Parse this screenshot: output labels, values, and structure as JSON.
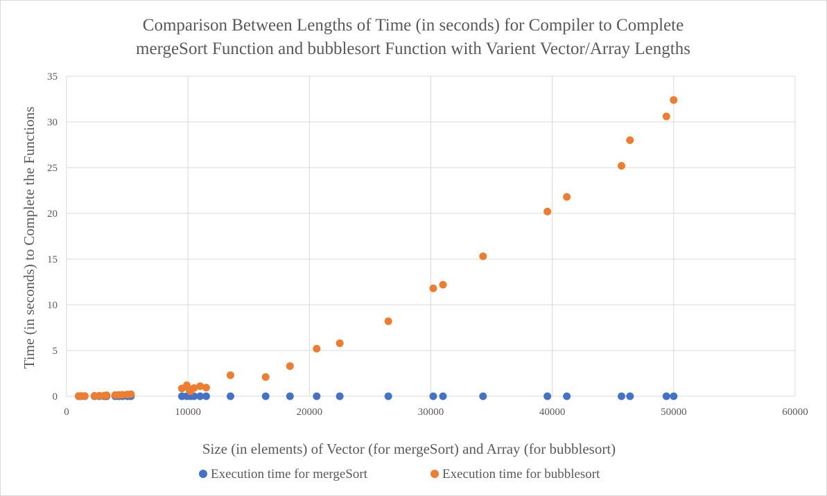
{
  "chart_data": {
    "type": "scatter",
    "title_lines": [
      "Comparison Between Lengths of Time (in seconds) for Compiler to Complete",
      "mergeSort Function and bubblesort Function with Varient Vector/Array Lengths"
    ],
    "xlabel": "Size (in elements) of Vector (for mergeSort) and Array (for bubblesort)",
    "ylabel": "Time (in seconds) to Complete  the Functions",
    "xlim": [
      0,
      60000
    ],
    "ylim": [
      0,
      35
    ],
    "x_ticks": [
      "0",
      "10000",
      "20000",
      "30000",
      "40000",
      "50000",
      "60000"
    ],
    "y_ticks": [
      "0",
      "5",
      "10",
      "15",
      "20",
      "25",
      "30",
      "35"
    ],
    "grid": true,
    "legend_position": "bottom",
    "series": [
      {
        "name": "Execution time for mergeSort",
        "color": "#4472c4",
        "points": [
          [
            1000,
            0
          ],
          [
            1200,
            0
          ],
          [
            1500,
            0
          ],
          [
            2300,
            0
          ],
          [
            2700,
            0
          ],
          [
            3100,
            0
          ],
          [
            3300,
            0
          ],
          [
            4000,
            0
          ],
          [
            4300,
            0
          ],
          [
            4600,
            0
          ],
          [
            5000,
            0
          ],
          [
            5300,
            0
          ],
          [
            9500,
            0
          ],
          [
            9900,
            0
          ],
          [
            10200,
            0
          ],
          [
            10500,
            0
          ],
          [
            11000,
            0
          ],
          [
            11500,
            0
          ],
          [
            13500,
            0
          ],
          [
            16400,
            0
          ],
          [
            18400,
            0
          ],
          [
            20600,
            0
          ],
          [
            22500,
            0
          ],
          [
            26500,
            0
          ],
          [
            30200,
            0
          ],
          [
            31000,
            0
          ],
          [
            34300,
            0
          ],
          [
            39600,
            0
          ],
          [
            41200,
            0
          ],
          [
            45700,
            0
          ],
          [
            46400,
            0
          ],
          [
            49400,
            0
          ],
          [
            50000,
            0
          ]
        ]
      },
      {
        "name": "Execution time for bubblesort",
        "color": "#ed7d31",
        "points": [
          [
            1000,
            0.02
          ],
          [
            1200,
            0.03
          ],
          [
            1500,
            0.03
          ],
          [
            2300,
            0.05
          ],
          [
            2700,
            0.06
          ],
          [
            3100,
            0.08
          ],
          [
            3300,
            0.1
          ],
          [
            4000,
            0.12
          ],
          [
            4300,
            0.14
          ],
          [
            4600,
            0.16
          ],
          [
            5000,
            0.19
          ],
          [
            5300,
            0.22
          ],
          [
            9500,
            0.85
          ],
          [
            9900,
            1.2
          ],
          [
            10100,
            0.75
          ],
          [
            10200,
            0.55
          ],
          [
            10500,
            0.9
          ],
          [
            11000,
            1.1
          ],
          [
            11500,
            0.95
          ],
          [
            13500,
            2.3
          ],
          [
            16400,
            2.1
          ],
          [
            18400,
            3.3
          ],
          [
            20600,
            5.2
          ],
          [
            22500,
            5.8
          ],
          [
            26500,
            8.2
          ],
          [
            30200,
            11.8
          ],
          [
            31000,
            12.2
          ],
          [
            34300,
            15.3
          ],
          [
            39600,
            20.2
          ],
          [
            41200,
            21.8
          ],
          [
            45700,
            25.2
          ],
          [
            46400,
            28.0
          ],
          [
            49400,
            30.6
          ],
          [
            50000,
            32.4
          ]
        ]
      }
    ]
  }
}
